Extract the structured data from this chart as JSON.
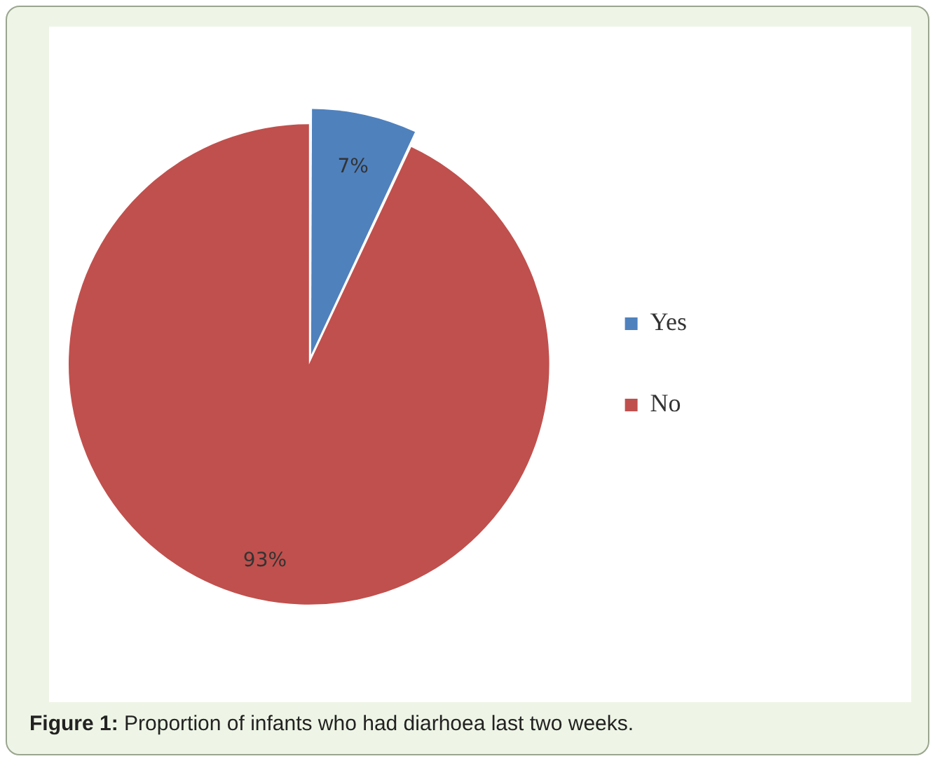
{
  "chart_data": {
    "type": "pie",
    "categories": [
      "Yes",
      "No"
    ],
    "values": [
      7,
      93
    ],
    "colors": [
      "#4f81bd",
      "#c0504d"
    ],
    "value_labels": [
      "7%",
      "93%"
    ],
    "legend": "right",
    "annotations": [
      "Figure 1: Proportion of infants who had diarhoea last two weeks."
    ]
  }
}
